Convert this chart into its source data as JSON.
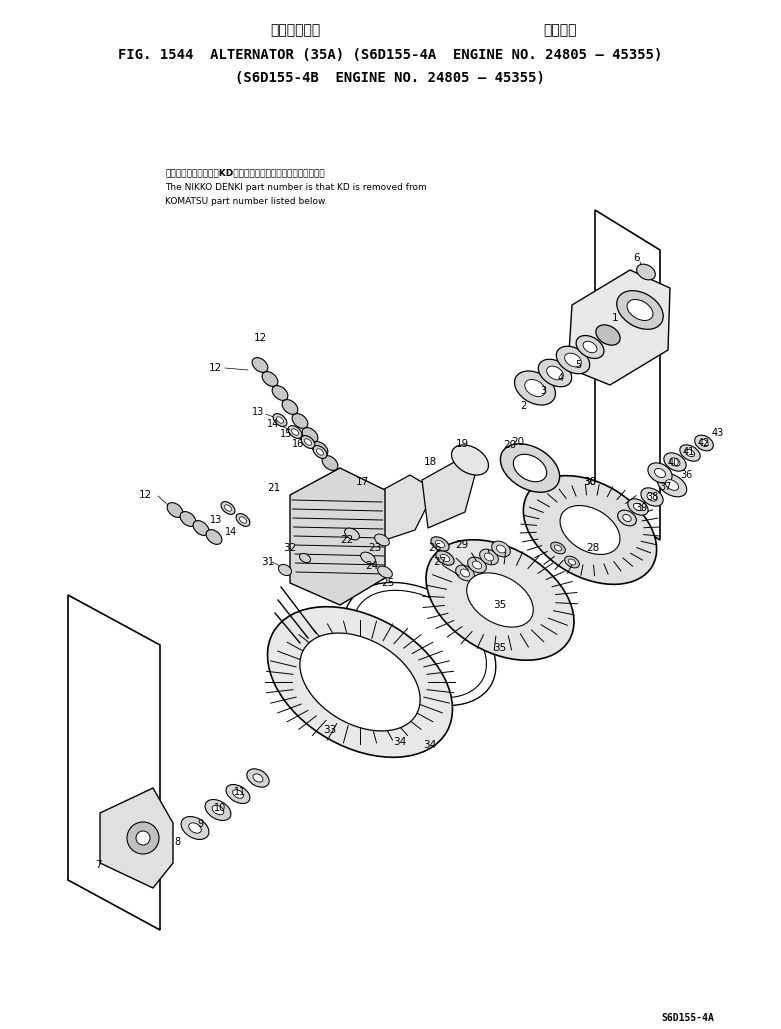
{
  "title_line1_jp": "オルタネータ",
  "title_line1_right_jp": "適用号機",
  "title_line2": "FIG. 1544  ALTERNATOR (35A) (S6D155-4A  ENGINE NO. 24805 — 45355)",
  "title_line3": "(S6D155-4B  ENGINE NO. 24805 — 45355)",
  "note_jp": "品番のメーカー品番ルKDを引いたものが日産電機の品番です。",
  "note_en1": "The NIKKO DENKI part number is that KD is removed from",
  "note_en2": "KOMATSU part number listed below.",
  "watermark": "S6D155-4A",
  "bg_color": "#ffffff",
  "text_color": "#000000",
  "fig_width": 7.81,
  "fig_height": 10.29,
  "dpi": 100
}
